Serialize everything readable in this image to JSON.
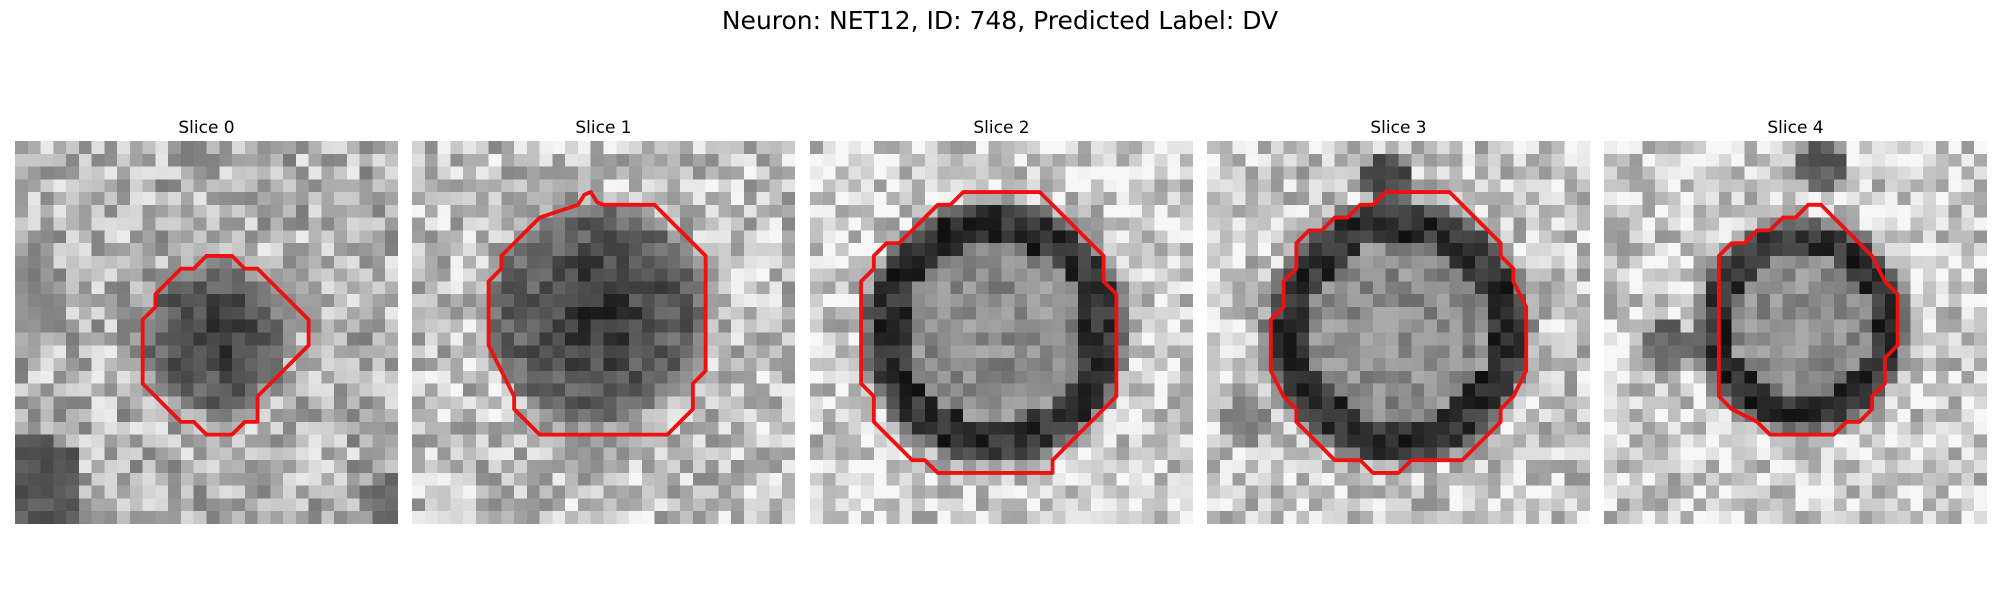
{
  "figure": {
    "title": "Neuron: NET12, ID: 748, Predicted Label: DV"
  },
  "panels": [
    {
      "title": "Slice 0"
    },
    {
      "title": "Slice 1"
    },
    {
      "title": "Slice 2"
    },
    {
      "title": "Slice 3"
    },
    {
      "title": "Slice 4"
    }
  ],
  "colors": {
    "contour": "#ee1111",
    "colormap": "grayscale"
  }
}
